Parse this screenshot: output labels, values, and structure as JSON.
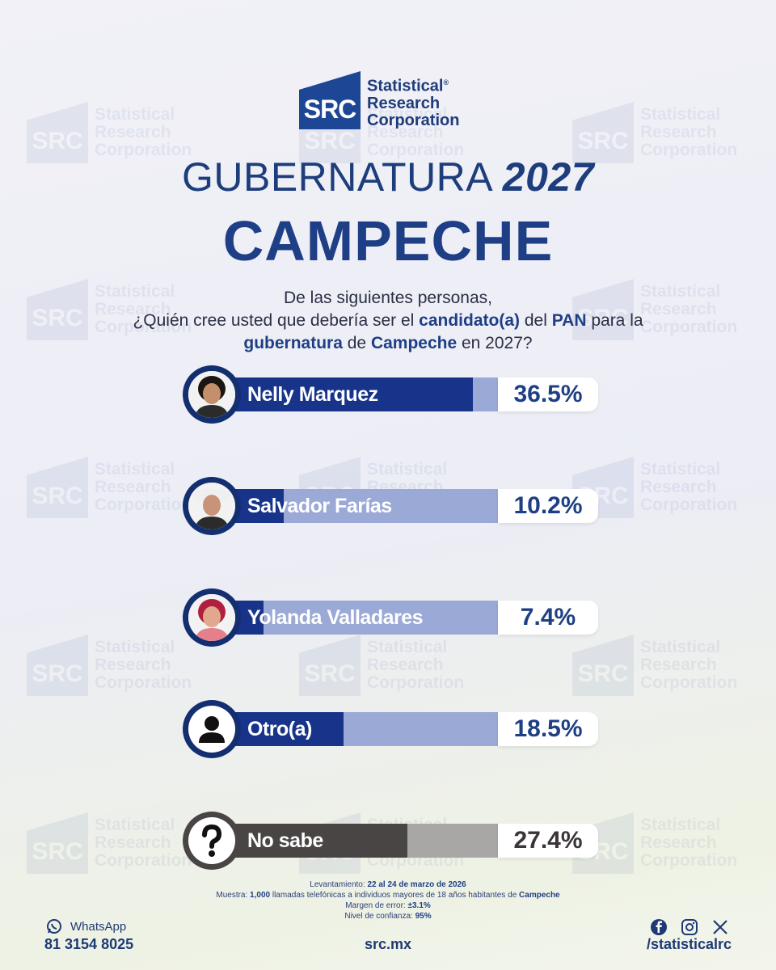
{
  "brand": {
    "logo_mark": "SRC",
    "name_line1": "Statistical",
    "name_line2": "Research",
    "name_line3": "Corporation",
    "registered": "®"
  },
  "title": {
    "line1_text": "GUBERNATURA",
    "line1_year": "2027",
    "line2": "CAMPECHE"
  },
  "question": {
    "line1": "De las siguientes personas,",
    "line2_a": "¿Quién cree usted que debería ser el ",
    "line2_b": "candidato(a)",
    "line2_c": " del ",
    "line2_d": "PAN",
    "line2_e": " para la",
    "line3_a": "gubernatura",
    "line3_b": " de ",
    "line3_c": "Campeche",
    "line3_d": " en 2027?"
  },
  "chart_data": {
    "type": "bar",
    "orientation": "horizontal",
    "unit": "%",
    "xlim": [
      0,
      40
    ],
    "categories": [
      "Nelly Marquez",
      "Salvador Farías",
      "Yolanda Valladares",
      "Otro(a)",
      "No sabe"
    ],
    "values": [
      36.5,
      10.2,
      7.4,
      18.5,
      27.4
    ],
    "labels": [
      "36.5%",
      "10.2%",
      "7.4%",
      "18.5%",
      "27.4%"
    ],
    "icons": [
      "candidate-photo",
      "candidate-photo",
      "candidate-photo",
      "person-icon",
      "question-mark-icon"
    ],
    "colors": [
      "#17338a",
      "#17338a",
      "#17338a",
      "#17338a",
      "#4a4545"
    ],
    "track_colors": [
      "#9aa9d6",
      "#9aa9d6",
      "#9aa9d6",
      "#9aa9d6",
      "#a9a6a6"
    ]
  },
  "methodology": {
    "fieldwork_label": "Levantamiento: ",
    "fieldwork_value": "22 al 24 de marzo de 2026",
    "sample_label": "Muestra: ",
    "sample_value": "1,000",
    "sample_text": " llamadas telefónicas a individuos mayores de 18 años habitantes de ",
    "sample_place": "Campeche",
    "margin_label": "Margen de error: ",
    "margin_value": "±3.1%",
    "confidence_label": "Nivel de confianza: ",
    "confidence_value": "95%"
  },
  "footer": {
    "whatsapp_label": "WhatsApp",
    "phone": "81 3154 8025",
    "website": "src.mx",
    "social_icons": [
      "facebook-icon",
      "instagram-icon",
      "x-icon"
    ],
    "handle": "/statisticalrc"
  }
}
